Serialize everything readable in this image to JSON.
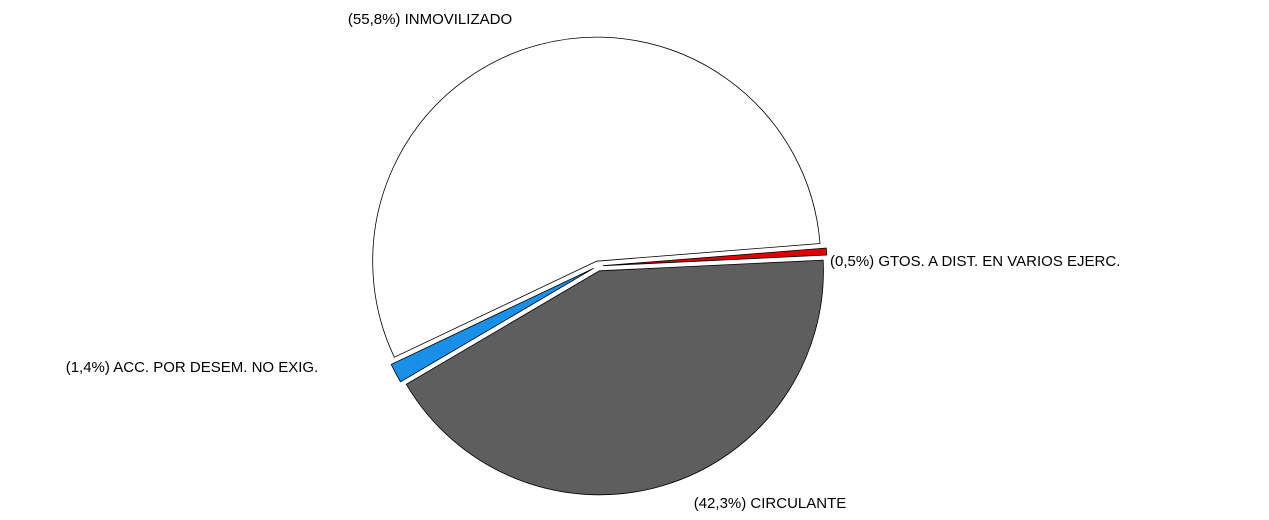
{
  "chart_data": {
    "type": "pie",
    "categories": [
      "INMOVILIZADO",
      "GTOS. A DIST. EN VARIOS EJERC.",
      "CIRCULANTE",
      "ACC. POR DESEM. NO EXIG."
    ],
    "values": [
      55.8,
      0.5,
      42.3,
      1.4
    ],
    "value_labels": [
      "(55,8%)",
      "(0,5%)",
      "(42,3%)",
      "(1,4%)"
    ],
    "colors": [
      "#ffffff",
      "#e00000",
      "#5e5e5e",
      "#1a8fe8"
    ]
  }
}
